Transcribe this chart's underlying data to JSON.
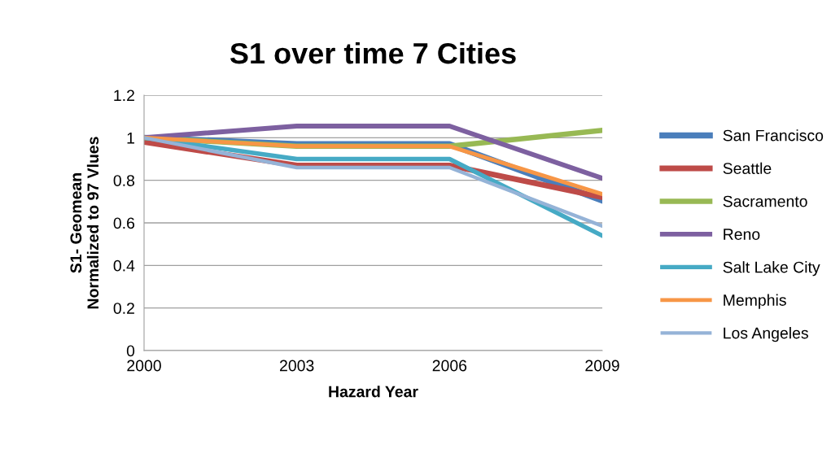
{
  "chart_data": {
    "type": "line",
    "title": "S1 over time 7 Cities",
    "xlabel": "Hazard Year",
    "ylabel": "S1- Geomean\nNormalized to 97 Vlues",
    "categories": [
      "2000",
      "2003",
      "2006",
      "2009"
    ],
    "series": [
      {
        "name": "San Francisco",
        "color": "#4a7ebb",
        "values": [
          1.0,
          0.97,
          0.97,
          0.705
        ]
      },
      {
        "name": "Seattle",
        "color": "#be4b48",
        "values": [
          0.98,
          0.87,
          0.87,
          0.72
        ]
      },
      {
        "name": "Sacramento",
        "color": "#98b954",
        "values": [
          1.0,
          0.96,
          0.96,
          1.035
        ]
      },
      {
        "name": "Reno",
        "color": "#7d60a0",
        "values": [
          1.0,
          1.055,
          1.055,
          0.81
        ]
      },
      {
        "name": "Salt Lake City",
        "color": "#46aac5",
        "values": [
          1.0,
          0.9,
          0.9,
          0.54
        ]
      },
      {
        "name": "Memphis",
        "color": "#f79646",
        "values": [
          1.0,
          0.96,
          0.96,
          0.735
        ]
      },
      {
        "name": "Los Angeles",
        "color": "#95b3d7",
        "values": [
          1.0,
          0.86,
          0.86,
          0.585
        ]
      }
    ],
    "ylim": [
      0,
      1.2
    ],
    "yticks": [
      0,
      0.2,
      0.4,
      0.6,
      0.8,
      1,
      1.2
    ],
    "grid": "y",
    "legend": "right",
    "marker": "none",
    "line_style": "solid"
  }
}
